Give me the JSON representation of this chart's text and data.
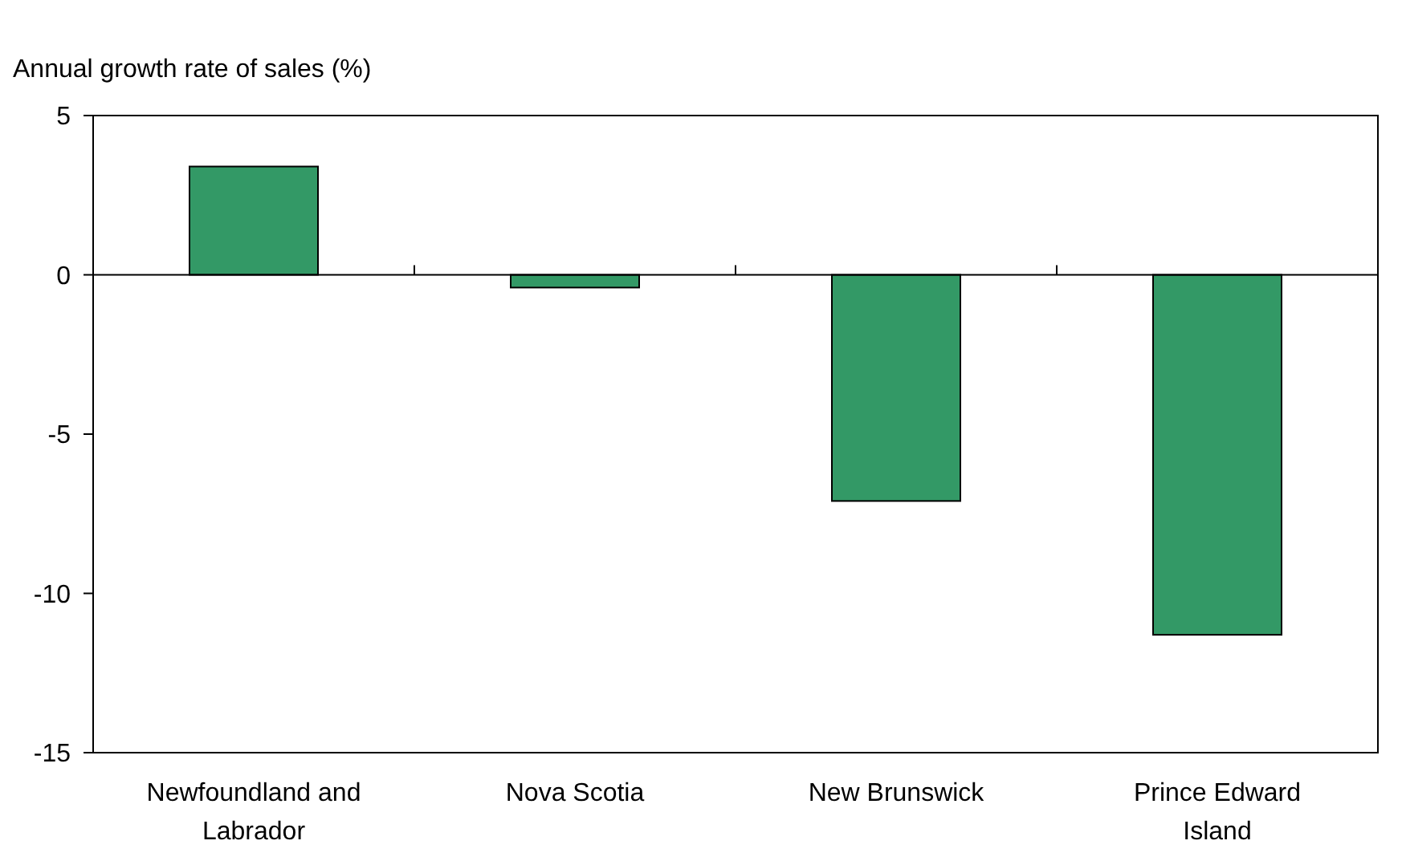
{
  "chart_data": {
    "type": "bar",
    "ylabel": "Annual growth rate of sales (%)",
    "categories": [
      "Newfoundland and Labrador",
      "Nova Scotia",
      "New Brunswick",
      "Prince Edward Island"
    ],
    "values": [
      3.4,
      -0.4,
      -7.1,
      -11.3
    ],
    "color": "#339966",
    "ylim": [
      -15,
      5
    ],
    "yticks": [
      -15,
      -10,
      -5,
      0,
      5
    ]
  }
}
